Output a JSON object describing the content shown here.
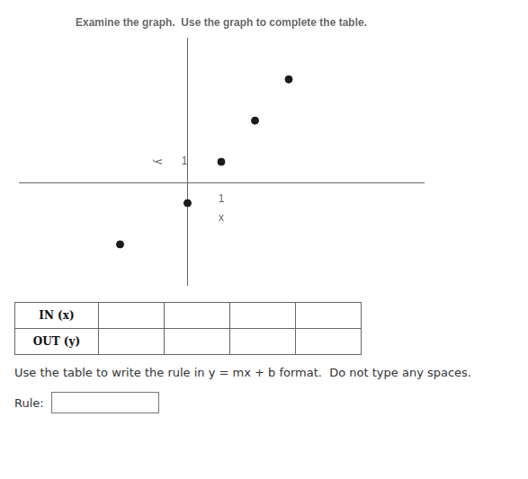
{
  "chart_data": {
    "type": "scatter",
    "title": "Examine the graph.  Use the graph to complete the table.",
    "x_label": "x",
    "y_label": "y",
    "x": [
      -2,
      0,
      1,
      2,
      3
    ],
    "values": [
      -3,
      -1,
      1,
      3,
      5
    ],
    "color": "#1a1a1a",
    "xlim": [
      -5,
      7
    ],
    "ylim": [
      -5,
      7
    ],
    "xticks": [
      1
    ],
    "yticks": [
      1
    ],
    "grid": false,
    "annotations": [
      "IN (x)",
      "OUT (y)",
      "Use the table to write the rule in y = mx + b format.  Do not type any spaces.",
      "Rule:"
    ]
  }
}
